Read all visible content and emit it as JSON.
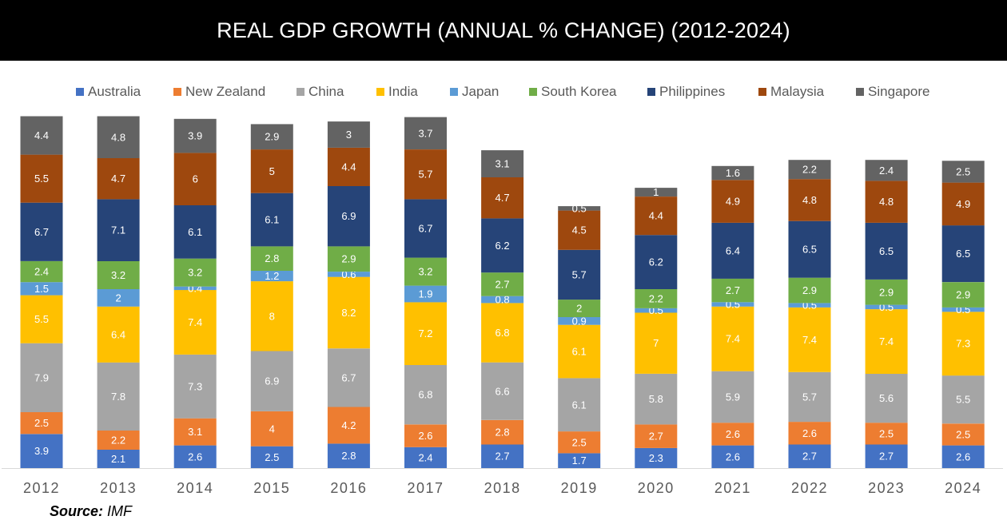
{
  "title": "REAL GDP GROWTH (ANNUAL % CHANGE) (2012-2024)",
  "source": {
    "label": "Source:",
    "value": "IMF"
  },
  "chart_data": {
    "type": "bar",
    "stacked": true,
    "categories": [
      "2012",
      "2013",
      "2014",
      "2015",
      "2016",
      "2017",
      "2018",
      "2019",
      "2020",
      "2021",
      "2022",
      "2023",
      "2024"
    ],
    "series": [
      {
        "name": "Australia",
        "color": "#4472C4",
        "values": [
          3.9,
          2.1,
          2.6,
          2.5,
          2.8,
          2.4,
          2.7,
          1.7,
          2.3,
          2.6,
          2.7,
          2.7,
          2.6
        ]
      },
      {
        "name": "New Zealand",
        "color": "#ED7D31",
        "values": [
          2.5,
          2.2,
          3.1,
          4,
          4.2,
          2.6,
          2.8,
          2.5,
          2.7,
          2.6,
          2.6,
          2.5,
          2.5
        ]
      },
      {
        "name": "China",
        "color": "#A5A5A5",
        "values": [
          7.9,
          7.8,
          7.3,
          6.9,
          6.7,
          6.8,
          6.6,
          6.1,
          5.8,
          5.9,
          5.7,
          5.6,
          5.5
        ]
      },
      {
        "name": "India",
        "color": "#FFC000",
        "values": [
          5.5,
          6.4,
          7.4,
          8,
          8.2,
          7.2,
          6.8,
          6.1,
          7,
          7.4,
          7.4,
          7.4,
          7.3
        ]
      },
      {
        "name": "Japan",
        "color": "#5B9BD5",
        "values": [
          1.5,
          2,
          0.4,
          1.2,
          0.6,
          1.9,
          0.8,
          0.9,
          0.5,
          0.5,
          0.5,
          0.5,
          0.5
        ]
      },
      {
        "name": "South Korea",
        "color": "#70AD47",
        "values": [
          2.4,
          3.2,
          3.2,
          2.8,
          2.9,
          3.2,
          2.7,
          2,
          2.2,
          2.7,
          2.9,
          2.9,
          2.9
        ]
      },
      {
        "name": "Philippines",
        "color": "#264478",
        "values": [
          6.7,
          7.1,
          6.1,
          6.1,
          6.9,
          6.7,
          6.2,
          5.7,
          6.2,
          6.4,
          6.5,
          6.5,
          6.5
        ]
      },
      {
        "name": "Malaysia",
        "color": "#9E480E",
        "values": [
          5.5,
          4.7,
          6,
          5,
          4.4,
          5.7,
          4.7,
          4.5,
          4.4,
          4.9,
          4.8,
          4.8,
          4.9
        ]
      },
      {
        "name": "Singapore",
        "color": "#636363",
        "values": [
          4.4,
          4.8,
          3.9,
          2.9,
          3,
          3.7,
          3.1,
          0.5,
          1,
          1.6,
          2.2,
          2.4,
          2.5
        ]
      }
    ],
    "xlabel": "",
    "ylabel": "",
    "ylim": [
      0,
      40.2
    ],
    "grid": false,
    "data_labels": true,
    "legend_position": "top"
  }
}
